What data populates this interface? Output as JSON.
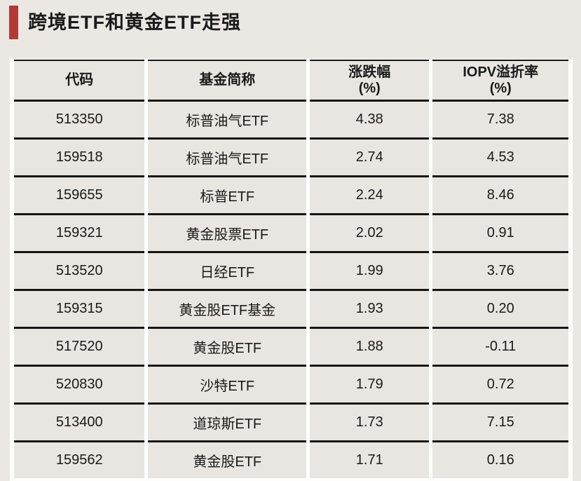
{
  "page": {
    "title": "跨境ETF和黄金ETF走强"
  },
  "colors": {
    "accent_bar": "#b23a36",
    "page_background": "#ebe8e4",
    "cell_background": "#e9e6e1",
    "separator_white": "#fdfdfc",
    "rule_black": "#161616",
    "text": "#1a1a1a"
  },
  "chart_data": {
    "type": "table",
    "title": "跨境ETF和黄金ETF走强",
    "columns": [
      {
        "label": "代码",
        "sub": ""
      },
      {
        "label": "基金简称",
        "sub": ""
      },
      {
        "label": "涨跌幅",
        "sub": "(%)"
      },
      {
        "label": "IOPV溢折率",
        "sub": "(%)"
      }
    ],
    "rows": [
      [
        "513350",
        "标普油气ETF",
        "4.38",
        "7.38"
      ],
      [
        "159518",
        "标普油气ETF",
        "2.74",
        "4.53"
      ],
      [
        "159655",
        "标普ETF",
        "2.24",
        "8.46"
      ],
      [
        "159321",
        "黄金股票ETF",
        "2.02",
        "0.91"
      ],
      [
        "513520",
        "日经ETF",
        "1.99",
        "3.76"
      ],
      [
        "159315",
        "黄金股ETF基金",
        "1.93",
        "0.20"
      ],
      [
        "517520",
        "黄金股ETF",
        "1.88",
        "-0.11"
      ],
      [
        "520830",
        "沙特ETF",
        "1.79",
        "0.72"
      ],
      [
        "513400",
        "道琼斯ETF",
        "1.73",
        "7.15"
      ],
      [
        "159562",
        "黄金股ETF",
        "1.71",
        "0.16"
      ]
    ]
  }
}
